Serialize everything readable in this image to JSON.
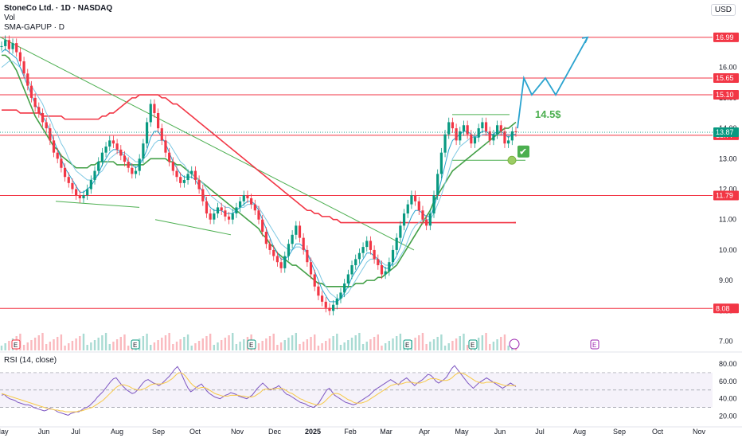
{
  "header": {
    "symbol": "StoneCo Ltd. · 1D · NASDAQ",
    "vol_label": "Vol",
    "sma_label": "SMA-GAPUP · D",
    "currency_button": "USD"
  },
  "rsi": {
    "title": "RSI (14, close)",
    "ticks": [
      80.0,
      60.0,
      40.0,
      20.0
    ],
    "upper_band": 70,
    "lower_band": 30,
    "values": [
      44,
      45,
      42,
      40,
      39,
      38,
      36,
      35,
      34,
      33,
      33,
      32,
      30,
      29,
      28,
      27,
      26,
      27,
      29,
      28,
      27,
      25,
      24,
      23,
      22,
      21,
      23,
      24,
      25,
      25,
      27,
      29,
      30,
      32,
      35,
      38,
      42,
      45,
      48,
      52,
      56,
      60,
      63,
      64,
      60,
      56,
      53,
      50,
      48,
      46,
      47,
      50,
      54,
      58,
      61,
      62,
      60,
      58,
      57,
      55,
      57,
      60,
      63,
      66,
      70,
      74,
      77,
      72,
      65,
      58,
      52,
      48,
      50,
      53,
      55,
      57,
      53,
      49,
      46,
      44,
      42,
      41,
      40,
      42,
      44,
      45,
      47,
      46,
      45,
      43,
      42,
      41,
      40,
      42,
      44,
      48,
      52,
      55,
      58,
      55,
      52,
      50,
      52,
      53,
      55,
      52,
      48,
      45,
      44,
      42,
      40,
      38,
      36,
      35,
      34,
      32,
      31,
      30,
      32,
      35,
      40,
      45,
      50,
      52,
      48,
      44,
      42,
      40,
      38,
      36,
      35,
      34,
      33,
      34,
      36,
      38,
      40,
      42,
      44,
      47,
      50,
      52,
      54,
      56,
      58,
      60,
      62,
      60,
      58,
      56,
      60,
      62,
      64,
      61,
      58,
      55,
      58,
      60,
      62,
      65,
      68,
      67,
      64,
      60,
      58,
      60,
      62,
      65,
      70,
      75,
      78,
      74,
      70,
      66,
      62,
      58,
      55,
      52,
      55,
      58,
      60,
      62,
      64,
      62,
      60,
      58,
      56,
      54,
      52,
      54,
      56,
      58,
      56,
      54
    ],
    "ma_values": [
      46,
      45,
      44,
      43,
      42,
      41,
      40,
      39,
      38,
      37,
      36,
      35,
      34,
      33,
      32,
      31,
      30,
      29,
      28,
      28,
      27,
      27,
      26,
      26,
      25,
      25,
      25,
      25,
      25,
      26,
      26,
      27,
      28,
      29,
      30,
      32,
      34,
      36,
      38,
      41,
      44,
      47,
      50,
      53,
      55,
      56,
      56,
      55,
      54,
      52,
      51,
      50,
      50,
      51,
      52,
      54,
      56,
      57,
      57,
      57,
      57,
      58,
      59,
      61,
      63,
      66,
      69,
      70,
      69,
      66,
      62,
      58,
      55,
      53,
      52,
      53,
      53,
      52,
      50,
      48,
      46,
      45,
      44,
      43,
      43,
      43,
      44,
      44,
      44,
      44,
      43,
      43,
      42,
      42,
      42,
      43,
      45,
      47,
      50,
      51,
      51,
      51,
      51,
      52,
      52,
      52,
      51,
      49,
      47,
      46,
      44,
      42,
      40,
      39,
      37,
      36,
      35,
      34,
      33,
      33,
      34,
      36,
      39,
      42,
      45,
      46,
      46,
      45,
      43,
      41,
      39,
      38,
      36,
      35,
      35,
      35,
      36,
      37,
      39,
      41,
      43,
      45,
      47,
      49,
      51,
      53,
      55,
      56,
      57,
      57,
      57,
      58,
      59,
      59,
      59,
      58,
      58,
      58,
      59,
      60,
      62,
      63,
      63,
      63,
      62,
      61,
      61,
      61,
      62,
      64,
      67,
      69,
      70,
      69,
      68,
      66,
      64,
      62,
      60,
      59,
      58,
      58,
      59,
      59,
      59,
      59,
      58,
      57,
      56,
      55,
      55,
      55,
      55,
      55
    ]
  },
  "chart_data": {
    "type": "candlestick",
    "x_ticks": [
      "May",
      "Jun",
      "Jul",
      "Aug",
      "Sep",
      "Oct",
      "Nov",
      "Dec",
      "2025",
      "Feb",
      "Mar",
      "Apr",
      "May",
      "Jun",
      "Jul",
      "Aug",
      "Sep",
      "Oct",
      "Nov"
    ],
    "y_ticks": [
      7.0,
      8.0,
      9.0,
      10.0,
      11.0,
      12.0,
      13.0,
      14.0,
      15.0,
      16.0
    ],
    "ylim": [
      6.7,
      17.3
    ],
    "horizontal_levels": [
      {
        "value": 16.99,
        "label": "16.99",
        "color": "#f23645"
      },
      {
        "value": 15.65,
        "label": "15.65",
        "color": "#f23645"
      },
      {
        "value": 15.1,
        "label": "15.10",
        "color": "#f23645"
      },
      {
        "value": 13.77,
        "label": "13.77",
        "color": "#f23645"
      },
      {
        "value": 11.79,
        "label": "11.79",
        "color": "#f23645"
      },
      {
        "value": 8.08,
        "label": "8.08",
        "color": "#f23645"
      }
    ],
    "last_price": {
      "value": 13.87,
      "label": "13.87",
      "color": "#089981"
    },
    "annotation": {
      "text": "14.5$",
      "color": "#4caf50"
    },
    "check_mark": "✔",
    "earnings_markers": [
      "E",
      "E",
      "E",
      "E",
      "E",
      "E"
    ],
    "future_marker": "E",
    "closes": [
      16.7,
      16.9,
      16.6,
      16.8,
      16.5,
      16.2,
      15.8,
      15.4,
      15.0,
      14.7,
      14.5,
      14.2,
      14.0,
      13.6,
      13.2,
      13.0,
      12.7,
      12.4,
      12.2,
      12.0,
      11.8,
      11.7,
      11.8,
      12.0,
      12.3,
      12.6,
      12.9,
      13.2,
      13.4,
      13.6,
      13.5,
      13.3,
      13.1,
      12.9,
      12.7,
      12.5,
      12.6,
      13.0,
      13.5,
      14.2,
      14.8,
      14.5,
      14.0,
      13.6,
      13.2,
      12.9,
      12.6,
      12.4,
      12.2,
      12.3,
      12.5,
      12.6,
      12.3,
      12.0,
      11.6,
      11.2,
      11.0,
      11.2,
      11.4,
      11.3,
      11.1,
      11.0,
      11.2,
      11.4,
      11.6,
      11.8,
      11.7,
      11.5,
      11.3,
      11.0,
      10.6,
      10.2,
      10.0,
      9.8,
      9.6,
      9.4,
      9.8,
      10.2,
      10.5,
      10.8,
      10.4,
      10.0,
      9.6,
      9.2,
      8.8,
      8.5,
      8.3,
      8.1,
      8.0,
      8.2,
      8.4,
      8.6,
      8.9,
      9.2,
      9.5,
      9.7,
      9.9,
      10.1,
      10.3,
      10.0,
      9.7,
      9.5,
      9.2,
      9.3,
      9.6,
      10.0,
      10.4,
      10.8,
      11.2,
      11.5,
      11.8,
      11.6,
      11.3,
      11.0,
      10.8,
      11.2,
      11.8,
      12.5,
      13.2,
      13.8,
      14.2,
      14.0,
      13.6,
      13.9,
      14.1,
      13.8,
      13.5,
      13.7,
      14.0,
      14.2,
      13.9,
      13.6,
      13.8,
      14.1,
      13.9,
      13.5,
      13.6,
      13.9,
      13.87
    ],
    "sma_fast": [
      16.5,
      16.6,
      16.5,
      16.4,
      16.3,
      16.0,
      15.7,
      15.4,
      15.1,
      14.8,
      14.6,
      14.4,
      14.2,
      13.9,
      13.6,
      13.3,
      13.0,
      12.7,
      12.5,
      12.3,
      12.1,
      11.9,
      11.9,
      12.0,
      12.1,
      12.3,
      12.5,
      12.8,
      13.0,
      13.2,
      13.3,
      13.3,
      13.2,
      13.1,
      12.9,
      12.8,
      12.7,
      12.8,
      13.0,
      13.3,
      13.7,
      13.9,
      13.9,
      13.7,
      13.5,
      13.2,
      12.9,
      12.7,
      12.5,
      12.4,
      12.4,
      12.4,
      12.3,
      12.1,
      11.9,
      11.6,
      11.4,
      11.3,
      11.3,
      11.3,
      11.2,
      11.2,
      11.2,
      11.3,
      11.4,
      11.5,
      11.6,
      11.6,
      11.5,
      11.3,
      11.0,
      10.7,
      10.4,
      10.1,
      9.9,
      9.7,
      9.7,
      9.8,
      10.0,
      10.2,
      10.2,
      10.1,
      9.9,
      9.6,
      9.3,
      9.0,
      8.7,
      8.5,
      8.3,
      8.3,
      8.3,
      8.4,
      8.6,
      8.8,
      9.1,
      9.3,
      9.5,
      9.7,
      9.9,
      9.9,
      9.8,
      9.7,
      9.5,
      9.4,
      9.4,
      9.6,
      9.8,
      10.1,
      10.5,
      10.8,
      11.1,
      11.3,
      11.3,
      11.2,
      11.1,
      11.1,
      11.4,
      11.8,
      12.3,
      12.8,
      13.3,
      13.6,
      13.7,
      13.8,
      13.9,
      13.9,
      13.8,
      13.7,
      13.8,
      13.9,
      13.9,
      13.8,
      13.8,
      13.9,
      13.9,
      13.8,
      13.7,
      13.8,
      13.8
    ],
    "sma_mid": [
      16.0,
      16.1,
      16.2,
      16.2,
      16.1,
      16.0,
      15.8,
      15.6,
      15.4,
      15.2,
      15.0,
      14.8,
      14.5,
      14.3,
      14.0,
      13.8,
      13.5,
      13.3,
      13.0,
      12.8,
      12.6,
      12.5,
      12.4,
      12.3,
      12.3,
      12.4,
      12.5,
      12.6,
      12.8,
      13.0,
      13.1,
      13.2,
      13.2,
      13.2,
      13.1,
      13.0,
      12.9,
      12.9,
      13.0,
      13.1,
      13.3,
      13.5,
      13.6,
      13.6,
      13.6,
      13.5,
      13.3,
      13.1,
      12.9,
      12.8,
      12.6,
      12.5,
      12.4,
      12.3,
      12.2,
      12.0,
      11.8,
      11.7,
      11.6,
      11.5,
      11.4,
      11.4,
      11.3,
      11.3,
      11.4,
      11.4,
      11.5,
      11.5,
      11.5,
      11.4,
      11.2,
      11.0,
      10.8,
      10.6,
      10.4,
      10.2,
      10.1,
      10.0,
      10.0,
      10.1,
      10.1,
      10.0,
      9.9,
      9.7,
      9.5,
      9.3,
      9.0,
      8.8,
      8.6,
      8.5,
      8.4,
      8.4,
      8.5,
      8.6,
      8.8,
      9.0,
      9.2,
      9.4,
      9.6,
      9.7,
      9.7,
      9.7,
      9.6,
      9.5,
      9.5,
      9.5,
      9.6,
      9.8,
      10.0,
      10.3,
      10.6,
      10.8,
      10.9,
      11.0,
      11.0,
      11.0,
      11.2,
      11.5,
      11.8,
      12.2,
      12.6,
      13.0,
      13.2,
      13.4,
      13.5,
      13.6,
      13.7,
      13.7,
      13.7,
      13.8,
      13.8,
      13.8,
      13.8,
      13.8,
      13.8,
      13.8,
      13.8,
      13.8,
      13.8
    ],
    "sma_green": [
      16.4,
      16.4,
      16.3,
      16.1,
      15.9,
      15.6,
      15.3,
      15.0,
      14.7,
      14.4,
      14.2,
      14.0,
      13.8,
      13.6,
      13.4,
      13.3,
      13.1,
      13.0,
      12.9,
      12.8,
      12.7,
      12.7,
      12.7,
      12.7,
      12.8,
      12.8,
      12.9,
      12.9,
      12.9,
      12.9,
      12.9,
      12.8,
      12.8,
      12.8,
      12.8,
      12.8,
      12.8,
      12.8,
      12.8,
      12.9,
      13.0,
      13.0,
      13.0,
      13.0,
      13.0,
      12.9,
      12.9,
      12.8,
      12.8,
      12.7,
      12.6,
      12.5,
      12.4,
      12.3,
      12.2,
      12.1,
      12.0,
      11.9,
      11.8,
      11.7,
      11.6,
      11.5,
      11.4,
      11.3,
      11.2,
      11.1,
      11.0,
      10.9,
      10.8,
      10.7,
      10.5,
      10.4,
      10.2,
      10.1,
      9.9,
      9.8,
      9.7,
      9.6,
      9.5,
      9.5,
      9.4,
      9.3,
      9.2,
      9.1,
      9.0,
      8.9,
      8.9,
      8.8,
      8.8,
      8.8,
      8.8,
      8.8,
      8.8,
      8.8,
      8.8,
      8.9,
      8.9,
      8.9,
      9.0,
      9.0,
      9.0,
      9.1,
      9.1,
      9.2,
      9.3,
      9.4,
      9.5,
      9.7,
      9.9,
      10.1,
      10.3,
      10.5,
      10.7,
      10.9,
      11.1,
      11.3,
      11.6,
      11.8,
      12.0,
      12.2,
      12.4,
      12.6,
      12.7,
      12.8,
      12.9,
      13.0,
      13.1,
      13.2,
      13.3,
      13.4,
      13.5,
      13.6,
      13.7,
      13.8,
      13.9,
      14.0,
      14.0,
      14.1,
      14.2
    ],
    "sma_red": [
      14.6,
      14.6,
      14.6,
      14.6,
      14.6,
      14.5,
      14.5,
      14.5,
      14.5,
      14.5,
      14.5,
      14.4,
      14.4,
      14.4,
      14.4,
      14.4,
      14.4,
      14.3,
      14.3,
      14.3,
      14.3,
      14.3,
      14.3,
      14.3,
      14.3,
      14.3,
      14.3,
      14.4,
      14.4,
      14.5,
      14.5,
      14.6,
      14.7,
      14.8,
      14.9,
      15.0,
      15.0,
      15.1,
      15.1,
      15.1,
      15.1,
      15.1,
      15.1,
      15.0,
      15.0,
      14.9,
      14.8,
      14.8,
      14.7,
      14.6,
      14.5,
      14.4,
      14.3,
      14.2,
      14.1,
      14.0,
      13.9,
      13.8,
      13.7,
      13.6,
      13.5,
      13.4,
      13.3,
      13.2,
      13.1,
      13.0,
      12.9,
      12.8,
      12.7,
      12.6,
      12.5,
      12.4,
      12.3,
      12.2,
      12.1,
      12.0,
      11.9,
      11.8,
      11.7,
      11.6,
      11.5,
      11.4,
      11.3,
      11.3,
      11.2,
      11.2,
      11.1,
      11.1,
      11.1,
      11.0,
      11.0,
      10.9,
      10.9,
      10.9,
      10.9,
      10.9,
      10.9,
      10.9,
      10.9,
      10.9,
      10.9,
      10.9,
      10.9,
      10.9,
      10.9,
      10.9,
      10.9,
      10.9,
      10.9,
      10.9,
      10.9,
      10.9,
      10.9,
      10.9,
      10.9,
      10.9,
      10.9,
      10.9,
      10.9,
      10.9,
      10.9,
      10.9,
      10.9,
      10.9,
      10.9,
      10.9,
      10.9,
      10.9,
      10.9,
      10.9,
      10.9,
      10.9,
      10.9,
      10.9,
      10.9,
      10.9,
      10.9,
      10.9,
      10.9
    ],
    "projection_path": [
      15.1,
      15.65,
      15.1,
      15.65,
      15.1,
      16.99
    ]
  }
}
